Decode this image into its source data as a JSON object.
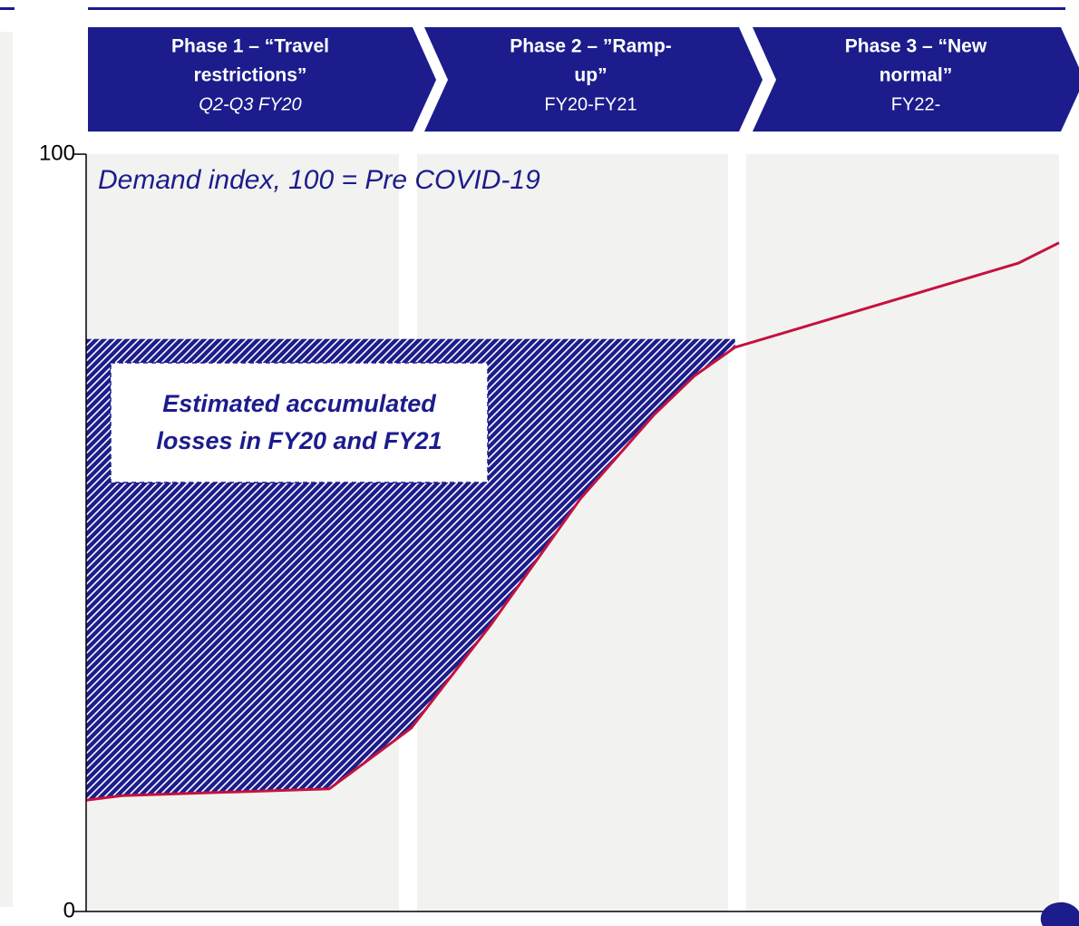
{
  "chart_data": {
    "type": "line",
    "annotation_subtitle": "Demand index, 100 = Pre COVID-19",
    "annotation_box": [
      "Estimated accumulated",
      "losses in FY20 and FY21"
    ],
    "phases": [
      {
        "title": [
          "Phase 1 – “Travel",
          "restrictions”"
        ],
        "period": "Q2-Q3 FY20"
      },
      {
        "title": [
          "Phase 2 – ”Ramp-",
          "up”"
        ],
        "period": "FY20-FY21"
      },
      {
        "title": [
          "Phase 3 – “New",
          "normal”"
        ],
        "period": "FY22-"
      }
    ],
    "x": [
      0,
      3.7,
      25.0,
      33.4,
      41.5,
      50.8,
      58.3,
      62.5,
      66.7,
      95.8,
      100
    ],
    "series": [
      {
        "color": "#c4123e",
        "values": [
          14.7,
          15.3,
          16.2,
          24.2,
          37.7,
          54.5,
          65.5,
          70.7,
          74.5,
          85.6,
          88.3
        ]
      }
    ],
    "loss_area": {
      "top": 75.6,
      "x_end": 66.7,
      "color": "#1c1c8c"
    },
    "xlim": [
      0,
      100
    ],
    "ylim": [
      0,
      100
    ],
    "yticks": [
      0,
      100
    ]
  }
}
